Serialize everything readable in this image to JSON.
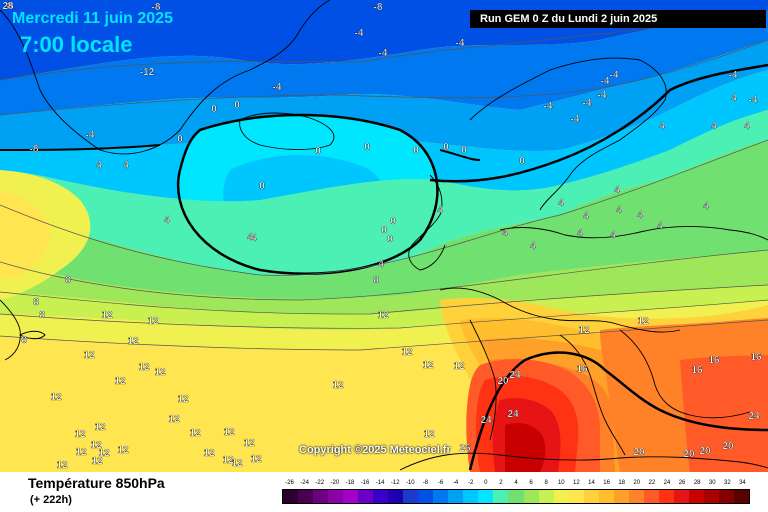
{
  "header": {
    "date": "Mercredi 11 juin 2025",
    "time": "7:00 locale",
    "run": "Run GEM 0 Z du Lundi 2 juin 2025"
  },
  "copyright": "Copyright (c)2025 Meteociel.fr",
  "parameter": "Température 850hPa",
  "lead_time": "(+ 222h)",
  "legend": {
    "labels": [
      "-26",
      "-24",
      "-22",
      "-20",
      "-18",
      "-16",
      "-14",
      "-12",
      "-10",
      "-8",
      "-6",
      "-4",
      "-2",
      "0",
      "2",
      "4",
      "6",
      "8",
      "10",
      "12",
      "14",
      "16",
      "18",
      "20",
      "22",
      "24",
      "26",
      "28",
      "30",
      "32",
      "34"
    ],
    "colors": [
      "#2b002e",
      "#4a0052",
      "#6b0080",
      "#8c00a8",
      "#a300c8",
      "#6a00c8",
      "#3a00c8",
      "#1e00b0",
      "#1a3cc8",
      "#0050e6",
      "#0078f0",
      "#00a0f5",
      "#00c6ff",
      "#00e6ff",
      "#4cf0b4",
      "#70e070",
      "#9ee65a",
      "#c8f050",
      "#f0f050",
      "#ffe650",
      "#ffd23c",
      "#ffbe2d",
      "#ffa028",
      "#ff8228",
      "#ff5a28",
      "#ff3214",
      "#e61414",
      "#c80000",
      "#aa0000",
      "#820000",
      "#5a0000"
    ]
  },
  "map": {
    "regions": [
      {
        "color": "#0050e6",
        "value": -8
      },
      {
        "color": "#0078f0",
        "value": -6
      },
      {
        "color": "#00a0f5",
        "value": -4
      },
      {
        "color": "#00c6ff",
        "value": -2
      },
      {
        "color": "#00e6ff",
        "value": 0
      },
      {
        "color": "#4cf0b4",
        "value": 2
      },
      {
        "color": "#70e070",
        "value": 4
      },
      {
        "color": "#9ee65a",
        "value": 6
      },
      {
        "color": "#c8f050",
        "value": 8
      },
      {
        "color": "#f0f050",
        "value": 10
      },
      {
        "color": "#ffe650",
        "value": 12
      },
      {
        "color": "#ffd23c",
        "value": 14
      },
      {
        "color": "#ffbe2d",
        "value": 16
      },
      {
        "color": "#ffa028",
        "value": 18
      },
      {
        "color": "#ff8228",
        "value": 20
      },
      {
        "color": "#ff5a28",
        "value": 22
      },
      {
        "color": "#ff3214",
        "value": 24
      },
      {
        "color": "#e61414",
        "value": 26
      },
      {
        "color": "#c80000",
        "value": 28
      }
    ],
    "contour_labels": [
      "-8",
      "-8",
      "-8",
      "-12",
      "-4",
      "-4",
      "-4",
      "-4",
      "-4",
      "-4",
      "-4",
      "-4",
      "-4",
      "-4",
      "-4",
      "-4",
      "-4",
      "-8",
      "0",
      "0",
      "0",
      "0",
      "0",
      "0",
      "0",
      "0",
      "0",
      "0",
      "0",
      "0",
      "0",
      "4",
      "4",
      "4",
      "4",
      "4",
      "4",
      "4",
      "4",
      "4",
      "4",
      "4",
      "4",
      "4",
      "4",
      "4",
      "4",
      "4",
      "4",
      "4",
      "4",
      "4",
      "4",
      "8",
      "8",
      "8",
      "8",
      "8",
      "12",
      "12",
      "12",
      "12",
      "12",
      "12",
      "12",
      "12",
      "12",
      "12",
      "12",
      "12",
      "12",
      "12",
      "12",
      "12",
      "12",
      "12",
      "12",
      "12",
      "12",
      "12",
      "12",
      "12",
      "12",
      "12",
      "12",
      "12",
      "12",
      "12",
      "12",
      "12",
      "12",
      "16",
      "16",
      "16",
      "16",
      "20",
      "20",
      "20",
      "20",
      "20",
      "24",
      "24",
      "24",
      "24",
      "26",
      "28"
    ]
  }
}
